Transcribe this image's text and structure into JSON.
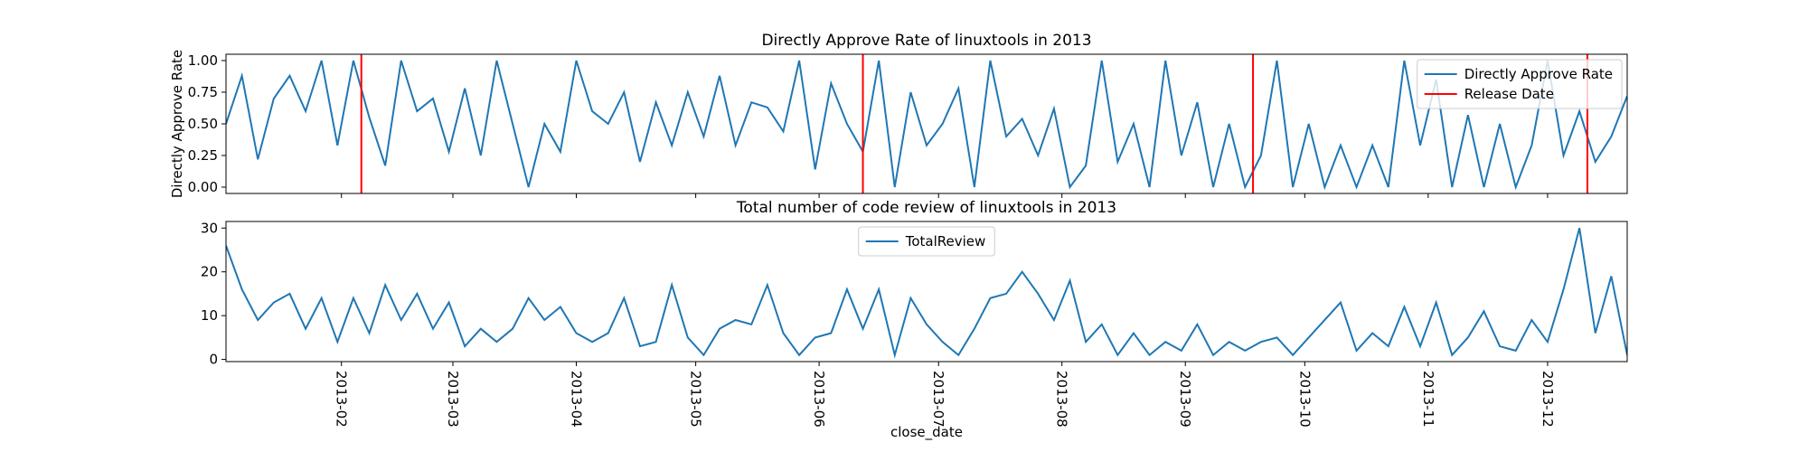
{
  "chart_data": [
    {
      "type": "line",
      "title": "Directly Approve Rate of linuxtools in 2013",
      "ylabel": "Directly Approve Rate",
      "x": [
        3,
        7,
        11,
        15,
        19,
        23,
        27,
        31,
        35,
        39,
        43,
        47,
        51,
        55,
        59,
        63,
        67,
        71,
        75,
        79,
        83,
        87,
        91,
        95,
        99,
        103,
        107,
        111,
        115,
        119,
        123,
        127,
        131,
        135,
        139,
        143,
        147,
        151,
        155,
        159,
        163,
        167,
        171,
        175,
        179,
        183,
        187,
        191,
        195,
        199,
        203,
        207,
        211,
        215,
        219,
        223,
        227,
        231,
        235,
        239,
        243,
        247,
        251,
        255,
        259,
        263,
        267,
        271,
        275,
        279,
        283,
        287,
        291,
        295,
        299,
        303,
        307,
        311,
        315,
        319,
        323,
        327,
        331,
        335,
        339,
        343,
        347,
        351,
        355
      ],
      "xlim": [
        3,
        355
      ],
      "ylim": [
        -0.05,
        1.05
      ],
      "yticks": [
        {
          "value": 0,
          "label": "0.00"
        },
        {
          "value": 0.25,
          "label": "0.25"
        },
        {
          "value": 0.5,
          "label": "0.50"
        },
        {
          "value": 0.75,
          "label": "0.75"
        },
        {
          "value": 1,
          "label": "1.00"
        }
      ],
      "legend": "upper right",
      "series": [
        {
          "name": "Directly Approve Rate",
          "color": "#1f77b4",
          "values": [
            0.5,
            0.88,
            0.22,
            0.7,
            0.88,
            0.6,
            1.0,
            0.33,
            1.0,
            0.55,
            0.17,
            1.0,
            0.6,
            0.7,
            0.28,
            0.78,
            0.25,
            1.0,
            0.5,
            0.0,
            0.5,
            0.28,
            1.0,
            0.6,
            0.5,
            0.75,
            0.2,
            0.67,
            0.33,
            0.75,
            0.4,
            0.88,
            0.33,
            0.67,
            0.63,
            0.44,
            1.0,
            0.14,
            0.82,
            0.5,
            0.28,
            1.0,
            0.0,
            0.75,
            0.33,
            0.5,
            0.78,
            0.0,
            1.0,
            0.4,
            0.54,
            0.25,
            0.62,
            0.0,
            0.17,
            1.0,
            0.2,
            0.5,
            0.0,
            1.0,
            0.25,
            0.67,
            0.0,
            0.5,
            0.0,
            0.25,
            1.0,
            0.0,
            0.5,
            0.0,
            0.33,
            0.0,
            0.33,
            0.0,
            1.0,
            0.33,
            0.85,
            0.0,
            0.57,
            0.0,
            0.5,
            0.0,
            0.33,
            1.0,
            0.25,
            0.6,
            0.2,
            0.4,
            0.72
          ]
        },
        {
          "name": "Release Date",
          "color": "#ff0000",
          "vlines": [
            37,
            163,
            261,
            345
          ]
        }
      ]
    },
    {
      "type": "line",
      "title": "Total number of code review of linuxtools in 2013",
      "xlabel": "close_date",
      "x": [
        3,
        7,
        11,
        15,
        19,
        23,
        27,
        31,
        35,
        39,
        43,
        47,
        51,
        55,
        59,
        63,
        67,
        71,
        75,
        79,
        83,
        87,
        91,
        95,
        99,
        103,
        107,
        111,
        115,
        119,
        123,
        127,
        131,
        135,
        139,
        143,
        147,
        151,
        155,
        159,
        163,
        167,
        171,
        175,
        179,
        183,
        187,
        191,
        195,
        199,
        203,
        207,
        211,
        215,
        219,
        223,
        227,
        231,
        235,
        239,
        243,
        247,
        251,
        255,
        259,
        263,
        267,
        271,
        275,
        279,
        283,
        287,
        291,
        295,
        299,
        303,
        307,
        311,
        315,
        319,
        323,
        327,
        331,
        335,
        339,
        343,
        347,
        351,
        355
      ],
      "xlim": [
        3,
        355
      ],
      "ylim": [
        -0.5,
        31.5
      ],
      "yticks": [
        0,
        10,
        20,
        30
      ],
      "xticks": [
        {
          "value": 32,
          "label": "2013-02"
        },
        {
          "value": 60,
          "label": "2013-03"
        },
        {
          "value": 91,
          "label": "2013-04"
        },
        {
          "value": 121,
          "label": "2013-05"
        },
        {
          "value": 152,
          "label": "2013-06"
        },
        {
          "value": 182,
          "label": "2013-07"
        },
        {
          "value": 213,
          "label": "2013-08"
        },
        {
          "value": 244,
          "label": "2013-09"
        },
        {
          "value": 274,
          "label": "2013-10"
        },
        {
          "value": 305,
          "label": "2013-11"
        },
        {
          "value": 335,
          "label": "2013-12"
        }
      ],
      "legend": "upper center",
      "series": [
        {
          "name": "TotalReview",
          "color": "#1f77b4",
          "values": [
            26,
            16,
            9,
            13,
            15,
            7,
            14,
            4,
            14,
            6,
            17,
            9,
            15,
            7,
            13,
            3,
            7,
            4,
            7,
            14,
            9,
            12,
            6,
            4,
            6,
            14,
            3,
            4,
            17,
            5,
            1,
            7,
            9,
            8,
            17,
            6,
            1,
            5,
            6,
            16,
            7,
            16,
            1,
            14,
            8,
            4,
            1,
            7,
            14,
            15,
            20,
            15,
            9,
            18,
            4,
            8,
            1,
            6,
            1,
            4,
            2,
            8,
            1,
            4,
            2,
            4,
            5,
            1,
            5,
            9,
            13,
            2,
            6,
            3,
            12,
            3,
            13,
            1,
            5,
            11,
            3,
            2,
            9,
            4,
            16,
            30,
            6,
            19,
            1
          ]
        }
      ]
    }
  ]
}
